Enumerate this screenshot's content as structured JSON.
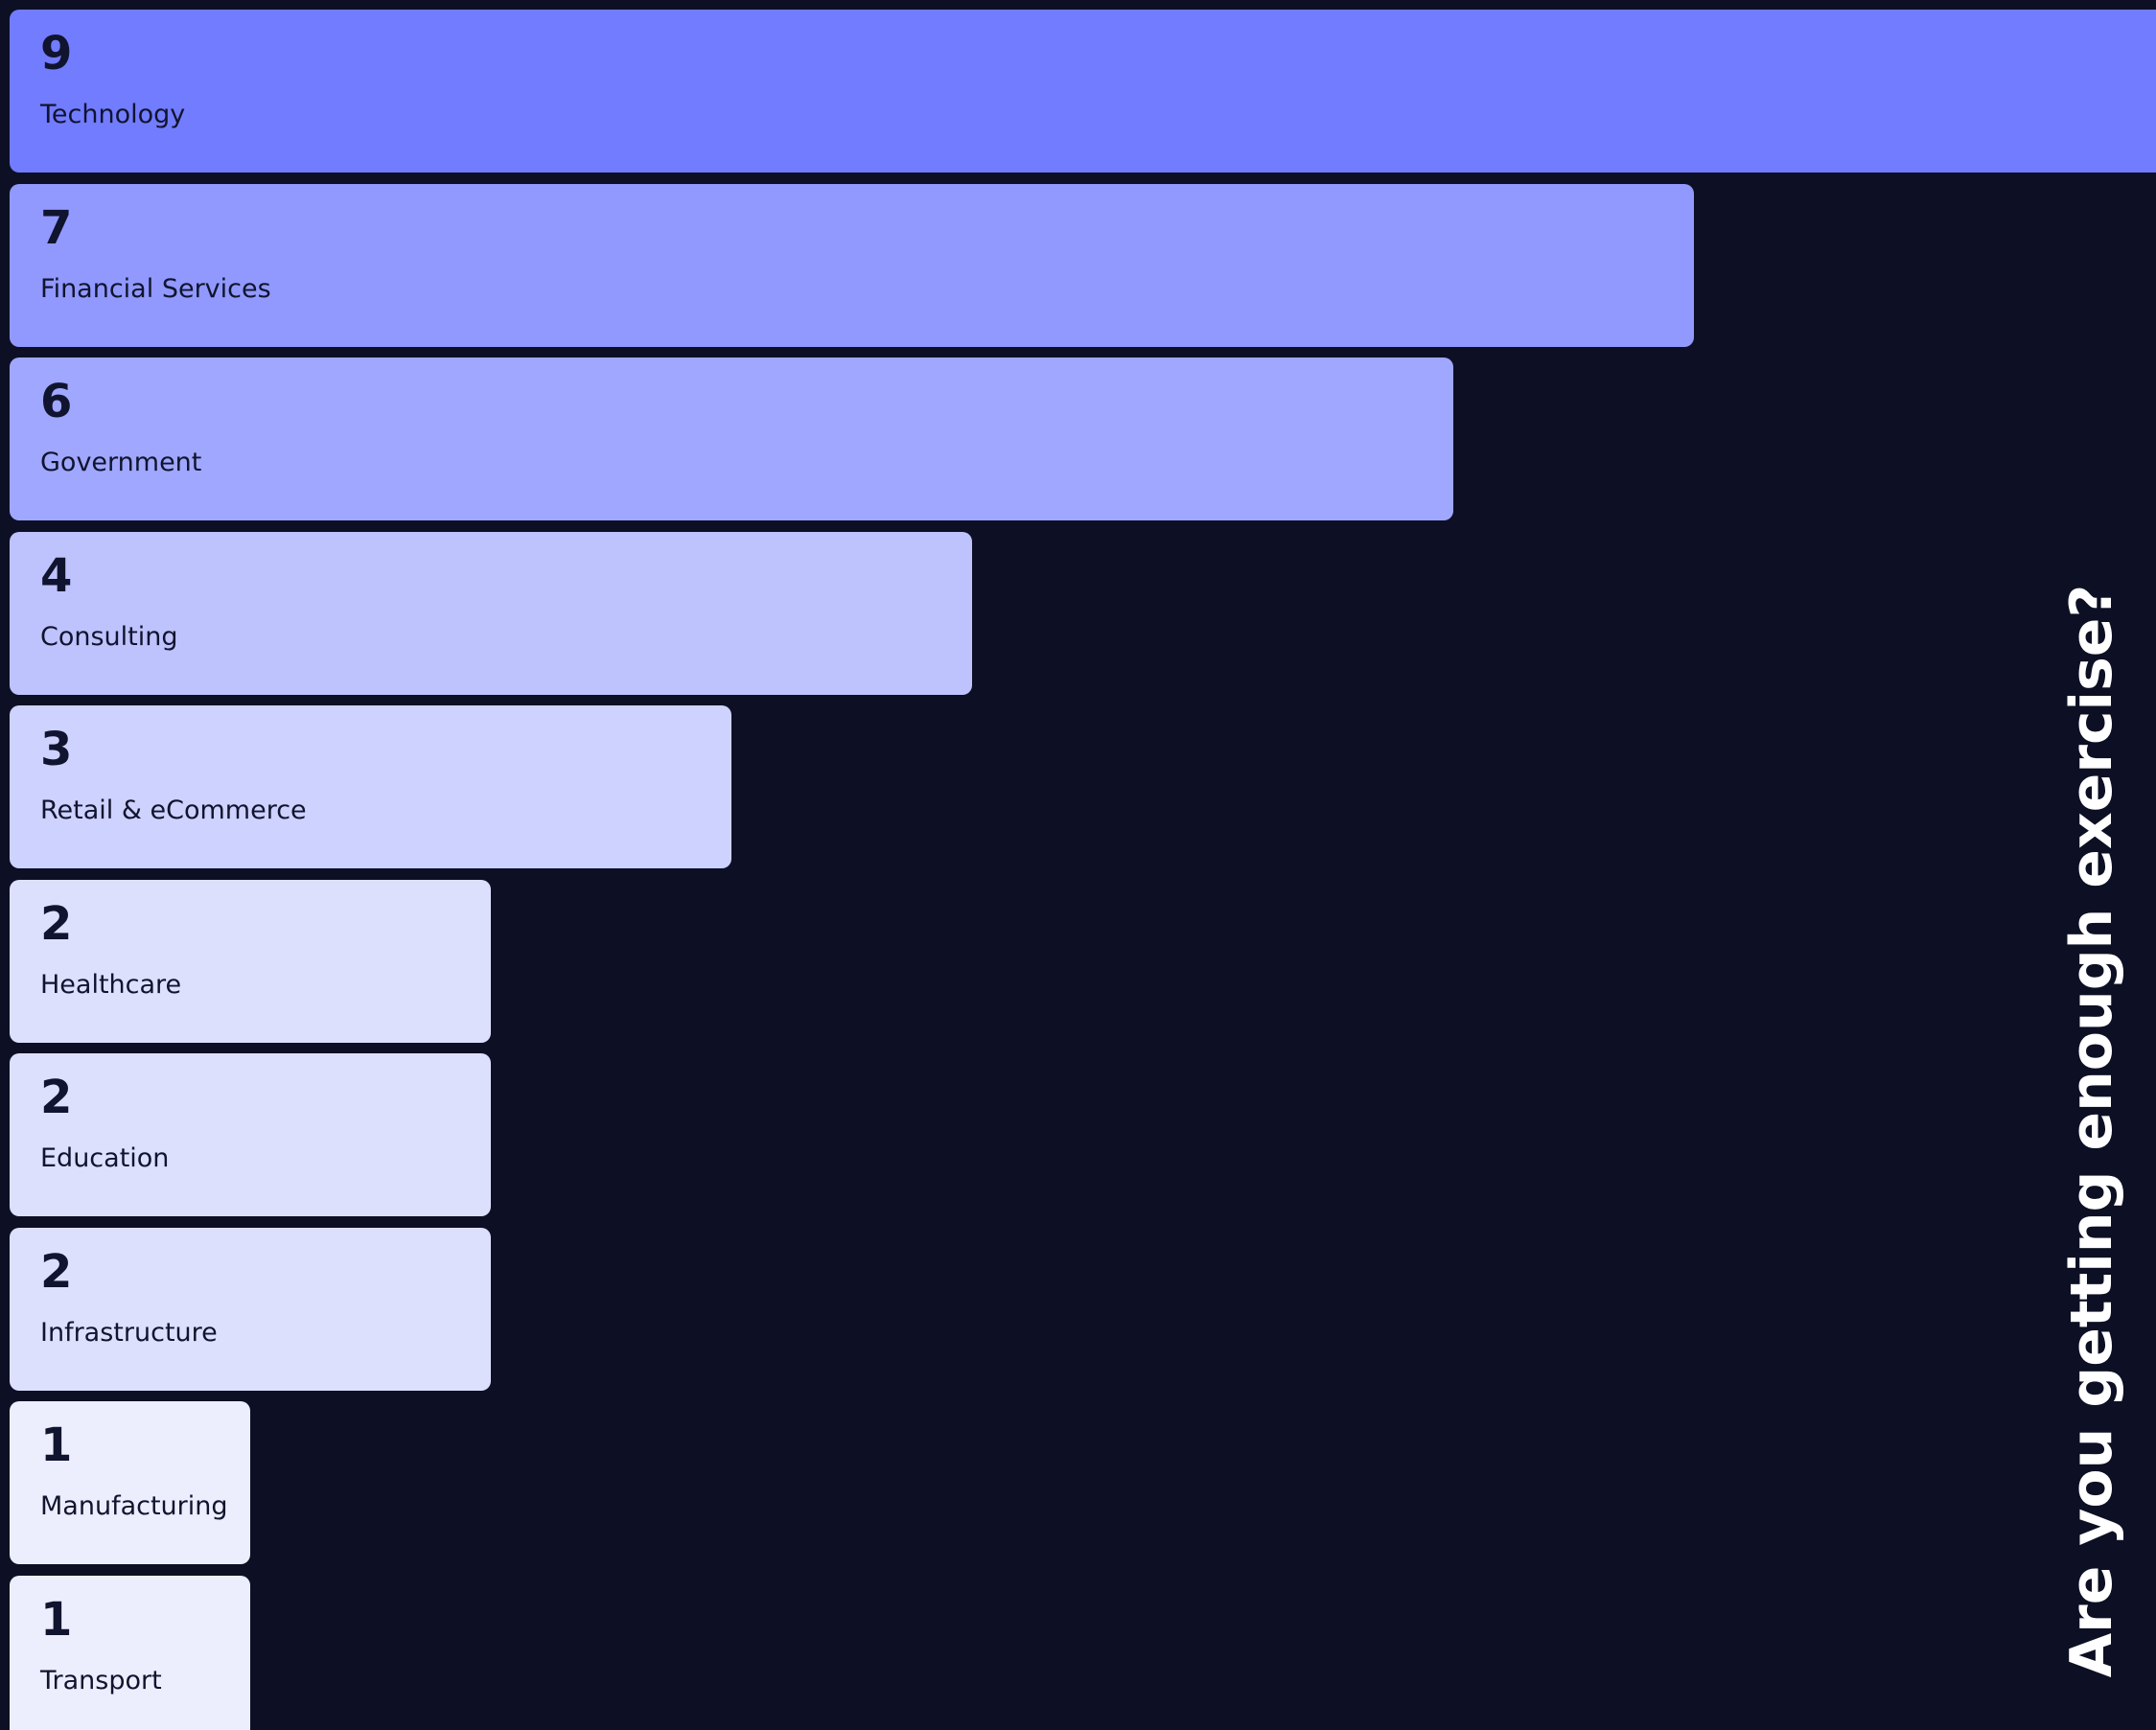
{
  "chart_data": {
    "type": "bar",
    "orientation": "horizontal",
    "title": "Are you getting enough exercise?",
    "categories": [
      "Technology",
      "Financial Services",
      "Government",
      "Consulting",
      "Retail & eCommerce",
      "Healthcare",
      "Education",
      "Infrastructure",
      "Manufacturing",
      "Transport"
    ],
    "values": [
      9,
      7,
      6,
      4,
      3,
      2,
      2,
      2,
      1,
      1
    ],
    "xlim": [
      0,
      9
    ],
    "grid": false,
    "legend": "none",
    "colors": {
      "background": "#0d1024",
      "text": "#11142e",
      "title": "#ffffff",
      "scale_dark": "#727cff",
      "scale_light": "#eceefd"
    }
  }
}
